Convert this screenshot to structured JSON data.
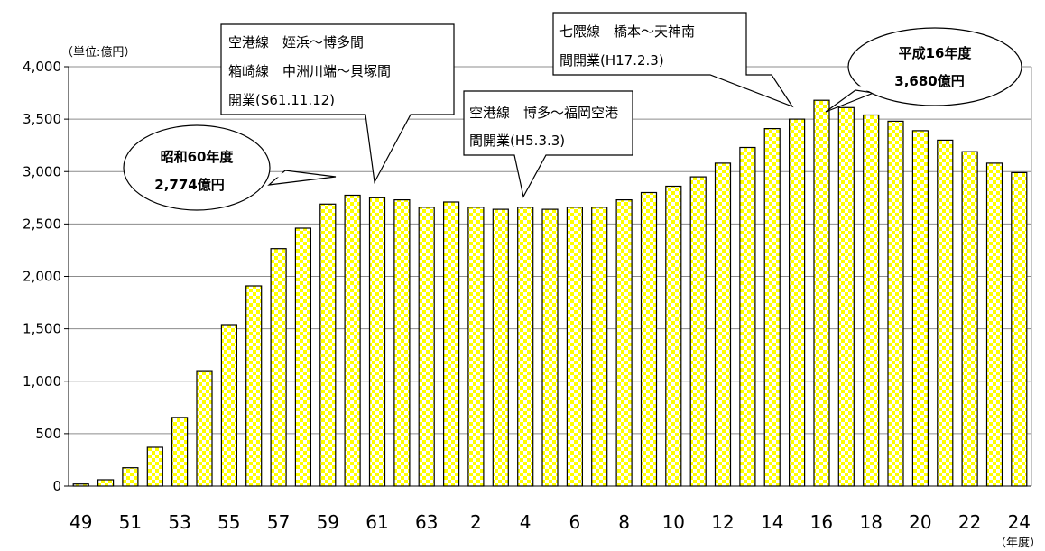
{
  "chart_data": {
    "type": "bar",
    "unit_label": "（単位:億円）",
    "x_unit_label": "（年度）",
    "ylim": [
      0,
      4000
    ],
    "y_ticks": [
      "0",
      "500",
      "1,000",
      "1,500",
      "2,000",
      "2,500",
      "3,000",
      "3,500",
      "4,000"
    ],
    "grid": true,
    "categories": [
      "49",
      "50",
      "51",
      "52",
      "53",
      "54",
      "55",
      "56",
      "57",
      "58",
      "59",
      "60",
      "61",
      "62",
      "63",
      "1",
      "2",
      "3",
      "4",
      "5",
      "6",
      "7",
      "8",
      "9",
      "10",
      "11",
      "12",
      "13",
      "14",
      "15",
      "16",
      "17",
      "18",
      "19",
      "20",
      "21",
      "22",
      "23",
      "24"
    ],
    "x_tick_labels": [
      "49",
      "51",
      "53",
      "55",
      "57",
      "59",
      "61",
      "63",
      "2",
      "4",
      "6",
      "8",
      "10",
      "12",
      "14",
      "16",
      "18",
      "20",
      "22",
      "24"
    ],
    "values": [
      20,
      60,
      175,
      370,
      655,
      1100,
      1540,
      1910,
      2265,
      2460,
      2690,
      2774,
      2750,
      2730,
      2660,
      2710,
      2660,
      2640,
      2660,
      2640,
      2660,
      2660,
      2730,
      2800,
      2860,
      2950,
      3080,
      3230,
      3410,
      3500,
      3680,
      3610,
      3540,
      3480,
      3390,
      3300,
      3190,
      3080,
      2990
    ],
    "bar_fill": "#ffff00",
    "bar_pattern": "#ffffff",
    "annotations": [
      {
        "lines": [
          "空港線　姪浜～博多間",
          "箱崎線　中洲川端～貝塚間",
          "開業(S61.11.12)"
        ]
      },
      {
        "lines": [
          "空港線　博多～福岡空港",
          "間開業(H5.3.3)"
        ]
      },
      {
        "lines": [
          "七隈線　橋本～天神南",
          "間開業(H17.2.3)"
        ]
      }
    ],
    "callouts": [
      {
        "lines": [
          "昭和60年度",
          "2,774億円"
        ]
      },
      {
        "lines": [
          "平成16年度",
          "3,680億円"
        ]
      }
    ]
  }
}
